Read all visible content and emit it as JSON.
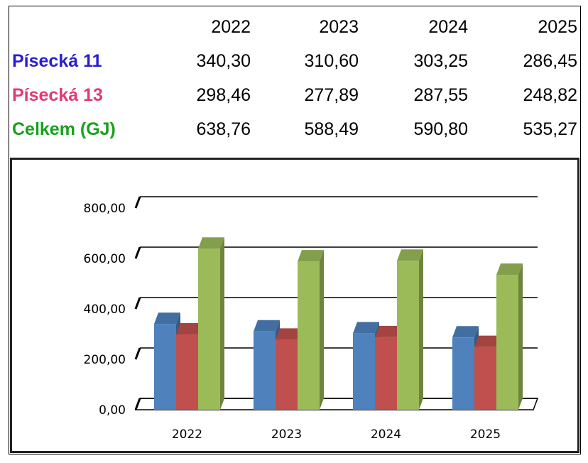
{
  "table": {
    "years": [
      "2022",
      "2023",
      "2024",
      "2025"
    ],
    "rows": [
      {
        "label": "Písecká 11",
        "color": "#2A1ED0",
        "values": [
          "340,30",
          "310,60",
          "303,25",
          "286,45"
        ]
      },
      {
        "label": "Písecká 13",
        "color": "#E03A74",
        "values": [
          "298,46",
          "277,89",
          "287,55",
          "248,82"
        ]
      },
      {
        "label": "Celkem (GJ)",
        "color": "#19A01E",
        "values": [
          "638,76",
          "588,49",
          "590,80",
          "535,27"
        ]
      }
    ]
  },
  "chart_data": {
    "type": "bar",
    "style": "3d-clustered-column",
    "categories": [
      "2022",
      "2023",
      "2024",
      "2025"
    ],
    "series": [
      {
        "color": "#4F81BD",
        "values": [
          340.3,
          310.6,
          303.25,
          286.45
        ]
      },
      {
        "color": "#C0504D",
        "values": [
          298.46,
          277.89,
          287.55,
          248.82
        ]
      },
      {
        "color": "#9BBB59",
        "values": [
          638.76,
          588.49,
          590.8,
          535.27
        ]
      }
    ],
    "ylim": [
      0,
      800
    ],
    "yticks": [
      "0,00",
      "200,00",
      "400,00",
      "600,00",
      "800,00"
    ],
    "grid": true,
    "legend": "none"
  }
}
